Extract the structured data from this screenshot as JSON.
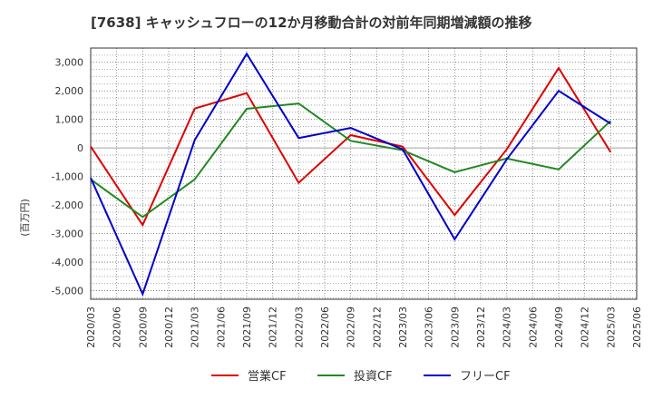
{
  "chart_data": {
    "type": "line",
    "title": "[7638]  キャッシュフローの12か月移動合計の対前年同期増減額の推移",
    "ylabel": "(百万円)",
    "xlabel": "",
    "x": [
      "2020/03",
      "2020/06",
      "2020/09",
      "2020/12",
      "2021/03",
      "2021/06",
      "2021/09",
      "2021/12",
      "2022/03",
      "2022/06",
      "2022/09",
      "2022/12",
      "2023/03",
      "2023/06",
      "2023/09",
      "2023/12",
      "2024/03",
      "2024/06",
      "2024/09",
      "2024/12",
      "2025/03",
      "2025/06"
    ],
    "ylim": [
      -5300,
      3500
    ],
    "yticks": [
      3000,
      2000,
      1000,
      0,
      -1000,
      -2000,
      -3000,
      -4000,
      -5000
    ],
    "ytick_labels": [
      "3,000",
      "2,000",
      "1,000",
      "0",
      "-1,000",
      "-2,000",
      "-3,000",
      "-4,000",
      "-5,000"
    ],
    "grid": true,
    "legend_position": "bottom",
    "series": [
      {
        "name": "営業CF",
        "color": "#dd0000",
        "x": [
          "2020/03",
          "2020/09",
          "2021/03",
          "2021/09",
          "2022/03",
          "2022/09",
          "2023/03",
          "2023/09",
          "2024/03",
          "2024/09",
          "2025/03"
        ],
        "values": [
          50,
          -2700,
          1380,
          1920,
          -1220,
          450,
          50,
          -2350,
          -50,
          2800,
          -150
        ]
      },
      {
        "name": "投資CF",
        "color": "#228822",
        "x": [
          "2020/03",
          "2020/09",
          "2021/03",
          "2021/09",
          "2022/03",
          "2022/09",
          "2023/03",
          "2023/09",
          "2024/03",
          "2024/09",
          "2025/03"
        ],
        "values": [
          -1100,
          -2420,
          -1100,
          1370,
          1560,
          250,
          -80,
          -850,
          -370,
          -750,
          950
        ]
      },
      {
        "name": "フリーCF",
        "color": "#0000cc",
        "x": [
          "2020/03",
          "2020/09",
          "2021/03",
          "2021/09",
          "2022/03",
          "2022/09",
          "2023/03",
          "2023/09",
          "2024/03",
          "2024/09",
          "2025/03"
        ],
        "values": [
          -1050,
          -5120,
          280,
          3300,
          350,
          700,
          -50,
          -3200,
          -400,
          2000,
          850
        ]
      }
    ]
  }
}
